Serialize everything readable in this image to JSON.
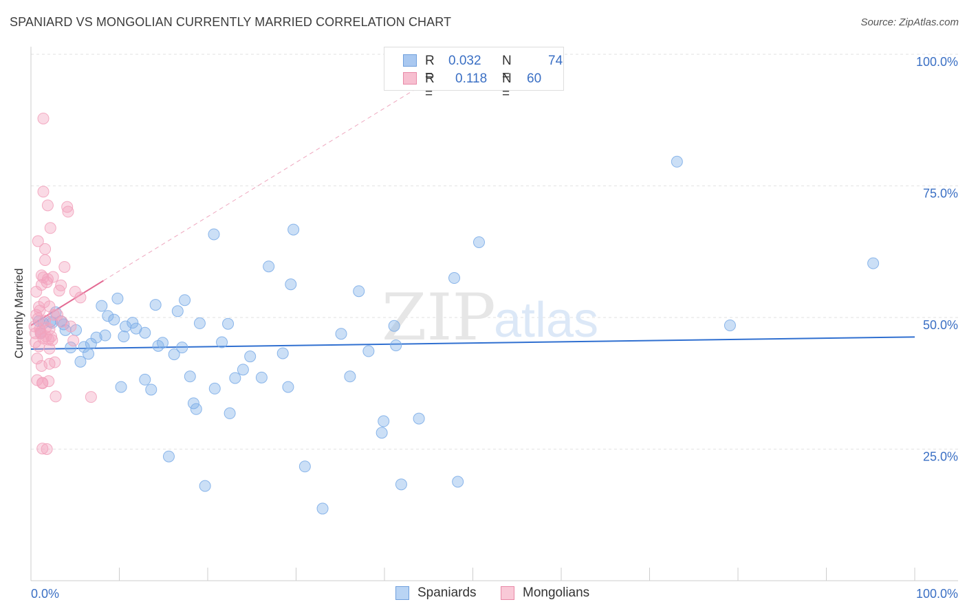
{
  "title": "SPANIARD VS MONGOLIAN CURRENTLY MARRIED CORRELATION CHART",
  "source": "Source: ZipAtlas.com",
  "watermark": {
    "zip": "ZIP",
    "atlas": "atlas"
  },
  "stats": [
    {
      "r_label": "R =",
      "r_value": "0.032",
      "n_label": "N =",
      "n_value": "74",
      "color": "#a9c8f0",
      "border": "#6f9fdc"
    },
    {
      "r_label": "R =",
      "r_value": "0.118",
      "n_label": "N =",
      "n_value": "60",
      "color": "#f7bfd0",
      "border": "#e888a6"
    }
  ],
  "legend": [
    {
      "label": "Spaniards",
      "color": "#b9d4f4",
      "border": "#6f9fdc"
    },
    {
      "label": "Mongolians",
      "color": "#f9c9d7",
      "border": "#e888a6"
    }
  ],
  "chart_data": {
    "type": "scatter",
    "title": "SPANIARD VS MONGOLIAN CURRENTLY MARRIED CORRELATION CHART",
    "xlabel": "",
    "ylabel": "Currently Married",
    "xlim": [
      0,
      100
    ],
    "ylim": [
      0,
      100
    ],
    "x_tick_labels": [
      "0.0%",
      "100.0%"
    ],
    "y_ticks": [
      25,
      50,
      75,
      100
    ],
    "y_tick_labels": [
      "25.0%",
      "50.0%",
      "75.0%",
      "100.0%"
    ],
    "grid": true,
    "series": [
      {
        "name": "Spaniards",
        "color": "#7eaee8",
        "line_color": "#2f6fd0",
        "trend": {
          "x": [
            0,
            100
          ],
          "y": [
            44.0,
            46.3
          ]
        },
        "points": [
          [
            0.9,
            49.3
          ],
          [
            1.1,
            47.0
          ],
          [
            1.4,
            48.9
          ],
          [
            2.2,
            49.2
          ],
          [
            2.4,
            49.0
          ],
          [
            2.8,
            51.0
          ],
          [
            3.4,
            49.3
          ],
          [
            3.7,
            48.7
          ],
          [
            3.9,
            47.6
          ],
          [
            4.5,
            44.3
          ],
          [
            5.1,
            47.6
          ],
          [
            5.6,
            41.6
          ],
          [
            6.0,
            44.4
          ],
          [
            6.5,
            43.1
          ],
          [
            6.8,
            45.0
          ],
          [
            7.4,
            46.2
          ],
          [
            8.0,
            52.2
          ],
          [
            8.4,
            46.6
          ],
          [
            8.7,
            50.3
          ],
          [
            9.4,
            49.6
          ],
          [
            9.8,
            53.6
          ],
          [
            10.2,
            36.8
          ],
          [
            10.5,
            46.4
          ],
          [
            10.7,
            48.3
          ],
          [
            11.5,
            49.0
          ],
          [
            11.9,
            47.9
          ],
          [
            12.9,
            47.1
          ],
          [
            12.9,
            38.2
          ],
          [
            13.6,
            36.3
          ],
          [
            14.1,
            52.4
          ],
          [
            14.4,
            44.6
          ],
          [
            14.9,
            45.2
          ],
          [
            15.6,
            23.6
          ],
          [
            16.2,
            43.0
          ],
          [
            16.6,
            51.2
          ],
          [
            17.1,
            44.3
          ],
          [
            17.4,
            53.3
          ],
          [
            18.0,
            38.8
          ],
          [
            18.4,
            33.7
          ],
          [
            18.7,
            32.6
          ],
          [
            19.1,
            48.9
          ],
          [
            19.7,
            18.0
          ],
          [
            20.7,
            65.8
          ],
          [
            20.8,
            36.5
          ],
          [
            21.6,
            45.3
          ],
          [
            22.3,
            48.8
          ],
          [
            22.5,
            31.8
          ],
          [
            23.1,
            38.5
          ],
          [
            24.0,
            40.1
          ],
          [
            24.8,
            42.6
          ],
          [
            26.1,
            38.6
          ],
          [
            26.9,
            59.7
          ],
          [
            28.5,
            43.2
          ],
          [
            29.1,
            36.8
          ],
          [
            29.4,
            56.3
          ],
          [
            29.7,
            66.7
          ],
          [
            31.0,
            21.7
          ],
          [
            33.0,
            13.7
          ],
          [
            35.1,
            46.9
          ],
          [
            36.1,
            38.8
          ],
          [
            37.1,
            55.0
          ],
          [
            38.2,
            43.6
          ],
          [
            39.7,
            28.1
          ],
          [
            39.9,
            30.3
          ],
          [
            41.1,
            48.4
          ],
          [
            41.3,
            44.7
          ],
          [
            41.9,
            18.3
          ],
          [
            43.9,
            30.8
          ],
          [
            47.9,
            57.5
          ],
          [
            48.3,
            18.8
          ],
          [
            50.7,
            64.3
          ],
          [
            73.1,
            79.6
          ],
          [
            79.1,
            48.5
          ],
          [
            95.3,
            60.3
          ]
        ]
      },
      {
        "name": "Mongolians",
        "color": "#f2a3bd",
        "line_color": "#e36a93",
        "trend": {
          "x": [
            0,
            8.2
          ],
          "y": [
            48.5,
            57.0
          ]
        },
        "trend_extension": {
          "x": [
            8.2,
            48.0
          ],
          "y": [
            57.0,
            98.0
          ]
        },
        "points": [
          [
            0.4,
            48.3
          ],
          [
            0.5,
            47.0
          ],
          [
            0.5,
            45.3
          ],
          [
            0.6,
            50.5
          ],
          [
            0.6,
            54.9
          ],
          [
            0.7,
            38.1
          ],
          [
            0.7,
            42.2
          ],
          [
            0.8,
            64.5
          ],
          [
            0.8,
            49.8
          ],
          [
            0.9,
            44.5
          ],
          [
            0.9,
            52.0
          ],
          [
            1.0,
            47.8
          ],
          [
            1.0,
            51.3
          ],
          [
            1.1,
            47.3
          ],
          [
            1.1,
            47.0
          ],
          [
            1.2,
            56.2
          ],
          [
            1.2,
            58.0
          ],
          [
            1.2,
            40.8
          ],
          [
            1.3,
            37.6
          ],
          [
            1.3,
            25.1
          ],
          [
            1.3,
            37.5
          ],
          [
            1.4,
            46.0
          ],
          [
            1.4,
            57.6
          ],
          [
            1.4,
            73.9
          ],
          [
            1.4,
            87.8
          ],
          [
            1.5,
            52.9
          ],
          [
            1.6,
            49.4
          ],
          [
            1.6,
            63.0
          ],
          [
            1.6,
            60.9
          ],
          [
            1.7,
            48.1
          ],
          [
            1.7,
            46.4
          ],
          [
            1.8,
            25.0
          ],
          [
            1.8,
            56.7
          ],
          [
            1.9,
            57.3
          ],
          [
            1.9,
            71.3
          ],
          [
            2.0,
            37.9
          ],
          [
            2.0,
            45.8
          ],
          [
            2.1,
            47.8
          ],
          [
            2.1,
            52.1
          ],
          [
            2.1,
            41.2
          ],
          [
            2.1,
            44.1
          ],
          [
            2.2,
            67.0
          ],
          [
            2.3,
            46.4
          ],
          [
            2.4,
            45.7
          ],
          [
            2.5,
            57.7
          ],
          [
            2.6,
            50.5
          ],
          [
            2.7,
            41.5
          ],
          [
            2.8,
            35.0
          ],
          [
            3.0,
            50.5
          ],
          [
            3.2,
            55.1
          ],
          [
            3.4,
            56.1
          ],
          [
            3.5,
            49.2
          ],
          [
            3.8,
            59.6
          ],
          [
            4.1,
            71.0
          ],
          [
            4.2,
            70.1
          ],
          [
            4.5,
            48.3
          ],
          [
            4.8,
            45.6
          ],
          [
            5.0,
            54.9
          ],
          [
            5.6,
            53.8
          ],
          [
            6.8,
            34.9
          ]
        ]
      }
    ]
  }
}
